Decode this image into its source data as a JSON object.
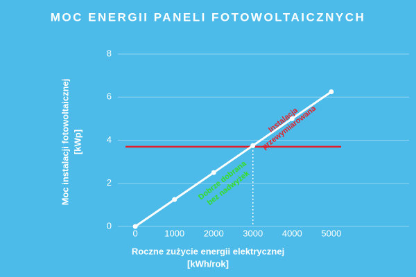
{
  "chart_data": {
    "type": "line",
    "title": "MOC ENERGII PANELI FOTOWOLTAICZNYCH",
    "x_label": [
      "Roczne zużycie energii elektrycznej",
      "[kWh/rok]"
    ],
    "y_label": [
      "Moc instalacji fotowoltaicznej",
      "[kWp]"
    ],
    "x": [
      0,
      1000,
      2000,
      3000,
      4000,
      5000
    ],
    "series": [
      {
        "color": "#ffffff",
        "values": [
          0,
          1.25,
          2.5,
          3.75,
          5,
          6.25
        ]
      }
    ],
    "xlim": [
      -250,
      5250
    ],
    "xticks": [
      0,
      1000,
      2000,
      3000,
      4000,
      5000
    ],
    "ylim": [
      0,
      8
    ],
    "yticks": [
      0,
      2,
      4,
      6,
      8
    ],
    "grid": true,
    "threshold": {
      "value": 3.7,
      "color": "#e0202a",
      "x": 3000
    },
    "annotations": [
      {
        "text": [
          "Instalacja",
          "przewymiarowana"
        ],
        "color": "#e0202a",
        "x": 3850,
        "y": 4.75
      },
      {
        "text": [
          "Dobrze dobrana",
          "bez nadwyżek"
        ],
        "color": "#33dd22",
        "x": 2300,
        "y": 1.95
      }
    ]
  }
}
